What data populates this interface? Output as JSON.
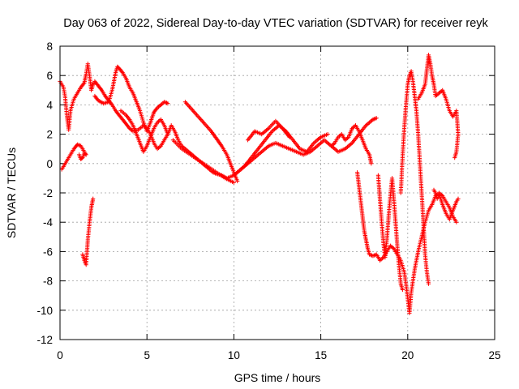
{
  "chart_data": {
    "type": "scatter",
    "title": "Day 063 of 2022, Sidereal Day-to-day VTEC variation (SDTVAR) for receiver reyk",
    "xlabel": "GPS time / hours",
    "ylabel": "SDTVAR / TECUs",
    "xlim": [
      0,
      25
    ],
    "ylim": [
      -12,
      8
    ],
    "xticks": [
      0,
      5,
      10,
      15,
      20,
      25
    ],
    "yticks": [
      -12,
      -10,
      -8,
      -6,
      -4,
      -2,
      0,
      2,
      4,
      6,
      8
    ],
    "grid": true,
    "marker": "+",
    "series": [
      {
        "name": "SDTVAR",
        "color": "#ff0000",
        "tracks": [
          [
            [
              0.0,
              5.6
            ],
            [
              0.2,
              5.2
            ],
            [
              0.3,
              4.5
            ],
            [
              0.4,
              3.2
            ],
            [
              0.5,
              2.3
            ],
            [
              0.6,
              3.6
            ],
            [
              0.8,
              4.4
            ],
            [
              1.0,
              4.8
            ],
            [
              1.2,
              5.2
            ],
            [
              1.4,
              5.5
            ],
            [
              1.5,
              6.1
            ],
            [
              1.6,
              6.8
            ],
            [
              1.7,
              6.0
            ],
            [
              1.8,
              5.0
            ],
            [
              1.9,
              5.4
            ],
            [
              2.0,
              5.6
            ],
            [
              2.2,
              5.3
            ],
            [
              2.4,
              5.0
            ],
            [
              2.6,
              4.6
            ],
            [
              2.8,
              4.3
            ],
            [
              3.0,
              4.0
            ],
            [
              3.2,
              3.6
            ],
            [
              3.4,
              3.3
            ],
            [
              3.6,
              3.0
            ],
            [
              3.8,
              2.7
            ],
            [
              4.0,
              2.4
            ],
            [
              4.2,
              2.2
            ],
            [
              4.5,
              2.3
            ],
            [
              4.8,
              2.6
            ],
            [
              5.0,
              2.4
            ],
            [
              5.2,
              2.0
            ],
            [
              5.4,
              1.4
            ],
            [
              5.6,
              1.0
            ],
            [
              5.8,
              1.2
            ],
            [
              6.0,
              1.6
            ],
            [
              6.2,
              2.0
            ],
            [
              6.4,
              2.6
            ],
            [
              6.6,
              2.2
            ],
            [
              6.8,
              1.6
            ],
            [
              7.0,
              1.2
            ],
            [
              7.2,
              1.0
            ],
            [
              7.4,
              0.8
            ],
            [
              7.6,
              0.6
            ],
            [
              7.8,
              0.4
            ],
            [
              8.0,
              0.2
            ],
            [
              8.2,
              0.0
            ],
            [
              8.4,
              -0.2
            ],
            [
              8.6,
              -0.4
            ],
            [
              8.8,
              -0.6
            ],
            [
              9.0,
              -0.7
            ],
            [
              9.3,
              -0.8
            ],
            [
              9.6,
              -1.0
            ],
            [
              10.0,
              -0.8
            ],
            [
              10.4,
              -0.4
            ],
            [
              10.8,
              0.0
            ],
            [
              11.2,
              0.4
            ],
            [
              11.6,
              0.8
            ],
            [
              12.0,
              1.2
            ],
            [
              12.4,
              1.4
            ],
            [
              12.8,
              1.2
            ],
            [
              13.2,
              1.0
            ],
            [
              13.6,
              0.8
            ],
            [
              14.0,
              0.6
            ],
            [
              14.4,
              0.8
            ],
            [
              14.8,
              1.2
            ],
            [
              15.2,
              1.6
            ],
            [
              15.6,
              1.2
            ],
            [
              16.0,
              0.8
            ],
            [
              16.4,
              1.0
            ],
            [
              16.8,
              1.4
            ],
            [
              17.2,
              2.0
            ],
            [
              17.6,
              2.6
            ],
            [
              18.0,
              3.0
            ],
            [
              18.2,
              3.1
            ]
          ],
          [
            [
              1.1,
              0.6
            ],
            [
              1.2,
              0.3
            ],
            [
              1.3,
              0.4
            ],
            [
              1.4,
              0.7
            ],
            [
              1.5,
              0.6
            ],
            [
              1.2,
              1.2
            ],
            [
              1.0,
              1.3
            ],
            [
              0.8,
              1.0
            ],
            [
              0.6,
              0.6
            ],
            [
              0.4,
              0.2
            ],
            [
              0.2,
              -0.2
            ],
            [
              0.1,
              -0.4
            ]
          ],
          [
            [
              2.0,
              4.6
            ],
            [
              2.2,
              4.3
            ],
            [
              2.5,
              4.1
            ],
            [
              2.8,
              4.2
            ],
            [
              3.0,
              5.0
            ],
            [
              3.2,
              6.2
            ],
            [
              3.3,
              6.6
            ],
            [
              3.4,
              6.5
            ],
            [
              3.6,
              6.2
            ],
            [
              3.8,
              5.8
            ],
            [
              4.0,
              5.2
            ],
            [
              4.2,
              4.8
            ],
            [
              4.4,
              4.2
            ],
            [
              4.6,
              3.6
            ],
            [
              4.8,
              2.8
            ],
            [
              5.0,
              2.2
            ],
            [
              5.2,
              2.8
            ],
            [
              5.4,
              3.5
            ],
            [
              5.6,
              3.8
            ],
            [
              5.8,
              4.0
            ],
            [
              6.0,
              4.2
            ],
            [
              6.2,
              4.1
            ]
          ],
          [
            [
              3.5,
              3.6
            ],
            [
              3.8,
              3.3
            ],
            [
              4.0,
              3.0
            ],
            [
              4.2,
              2.6
            ],
            [
              4.4,
              2.0
            ],
            [
              4.6,
              1.4
            ],
            [
              4.8,
              0.8
            ],
            [
              5.0,
              1.2
            ],
            [
              5.2,
              1.8
            ],
            [
              5.4,
              2.4
            ],
            [
              5.6,
              2.8
            ],
            [
              5.8,
              3.0
            ],
            [
              6.0,
              2.6
            ],
            [
              6.2,
              2.0
            ]
          ],
          [
            [
              7.2,
              4.2
            ],
            [
              7.5,
              3.8
            ],
            [
              7.8,
              3.4
            ],
            [
              8.1,
              3.0
            ],
            [
              8.4,
              2.6
            ],
            [
              8.7,
              2.2
            ],
            [
              9.0,
              1.7
            ],
            [
              9.3,
              1.2
            ],
            [
              9.6,
              0.6
            ],
            [
              9.8,
              0.0
            ],
            [
              10.0,
              -0.6
            ],
            [
              10.2,
              -1.2
            ]
          ],
          [
            [
              6.5,
              1.6
            ],
            [
              7.0,
              1.0
            ],
            [
              7.5,
              0.6
            ],
            [
              8.0,
              0.2
            ],
            [
              8.5,
              -0.2
            ],
            [
              9.0,
              -0.6
            ],
            [
              9.5,
              -1.0
            ],
            [
              10.0,
              -1.3
            ]
          ],
          [
            [
              10.2,
              -0.6
            ],
            [
              10.6,
              -0.2
            ],
            [
              11.0,
              0.4
            ],
            [
              11.4,
              1.0
            ],
            [
              11.8,
              1.6
            ],
            [
              12.2,
              2.2
            ],
            [
              12.6,
              2.6
            ],
            [
              13.0,
              2.2
            ],
            [
              13.4,
              1.6
            ],
            [
              13.8,
              1.0
            ],
            [
              14.2,
              0.8
            ],
            [
              14.6,
              1.4
            ],
            [
              15.0,
              1.8
            ],
            [
              15.4,
              2.0
            ]
          ],
          [
            [
              10.8,
              1.6
            ],
            [
              11.2,
              2.2
            ],
            [
              11.6,
              2.0
            ],
            [
              12.0,
              2.4
            ],
            [
              12.4,
              2.9
            ],
            [
              12.8,
              2.4
            ],
            [
              13.2,
              1.8
            ]
          ],
          [
            [
              15.6,
              1.2
            ],
            [
              15.8,
              1.4
            ],
            [
              16.0,
              1.8
            ],
            [
              16.2,
              2.0
            ],
            [
              16.4,
              1.6
            ],
            [
              16.6,
              1.8
            ],
            [
              16.8,
              2.4
            ],
            [
              17.0,
              2.6
            ],
            [
              17.2,
              2.2
            ],
            [
              17.4,
              1.6
            ],
            [
              17.6,
              1.0
            ],
            [
              17.8,
              0.6
            ],
            [
              17.9,
              0.0
            ]
          ],
          [
            [
              1.3,
              -6.2
            ],
            [
              1.4,
              -6.6
            ],
            [
              1.5,
              -6.9
            ],
            [
              1.6,
              -5.2
            ],
            [
              1.7,
              -4.0
            ],
            [
              1.8,
              -3.0
            ],
            [
              1.9,
              -2.4
            ]
          ],
          [
            [
              17.1,
              -0.6
            ],
            [
              17.2,
              -1.6
            ],
            [
              17.3,
              -2.6
            ],
            [
              17.4,
              -3.6
            ],
            [
              17.5,
              -4.6
            ],
            [
              17.6,
              -5.2
            ],
            [
              17.7,
              -5.8
            ],
            [
              17.8,
              -6.2
            ],
            [
              18.0,
              -6.3
            ],
            [
              18.2,
              -6.2
            ],
            [
              18.4,
              -6.6
            ],
            [
              18.6,
              -6.4
            ],
            [
              18.8,
              -6.0
            ],
            [
              19.0,
              -5.6
            ],
            [
              19.2,
              -5.8
            ],
            [
              19.4,
              -6.2
            ],
            [
              19.6,
              -6.6
            ],
            [
              19.8,
              -7.4
            ],
            [
              19.9,
              -8.2
            ],
            [
              20.0,
              -9.2
            ],
            [
              20.1,
              -10.2
            ],
            [
              20.2,
              -8.8
            ],
            [
              20.4,
              -7.2
            ],
            [
              20.6,
              -6.0
            ],
            [
              20.8,
              -5.0
            ],
            [
              21.0,
              -4.0
            ],
            [
              21.2,
              -3.2
            ],
            [
              21.4,
              -2.8
            ],
            [
              21.6,
              -2.2
            ],
            [
              21.8,
              -2.0
            ],
            [
              22.0,
              -2.2
            ],
            [
              22.2,
              -2.6
            ],
            [
              22.4,
              -3.0
            ],
            [
              22.6,
              -3.6
            ],
            [
              22.8,
              -4.0
            ]
          ],
          [
            [
              18.3,
              -0.8
            ],
            [
              18.4,
              -2.4
            ],
            [
              18.5,
              -4.0
            ],
            [
              18.6,
              -5.4
            ],
            [
              18.7,
              -6.4
            ],
            [
              18.8,
              -5.2
            ],
            [
              18.9,
              -3.6
            ],
            [
              19.0,
              -2.2
            ],
            [
              19.1,
              -1.0
            ],
            [
              19.2,
              -2.4
            ],
            [
              19.3,
              -4.0
            ],
            [
              19.4,
              -5.6
            ],
            [
              19.5,
              -7.0
            ],
            [
              19.6,
              -8.2
            ],
            [
              19.7,
              -8.6
            ]
          ],
          [
            [
              19.6,
              -2.0
            ],
            [
              19.7,
              0.4
            ],
            [
              19.8,
              2.4
            ],
            [
              19.9,
              4.0
            ],
            [
              20.0,
              5.4
            ],
            [
              20.1,
              6.0
            ],
            [
              20.2,
              6.3
            ],
            [
              20.3,
              5.6
            ],
            [
              20.4,
              4.6
            ],
            [
              20.5,
              3.6
            ],
            [
              20.6,
              2.0
            ],
            [
              20.7,
              0.0
            ],
            [
              20.8,
              -2.0
            ],
            [
              20.9,
              -4.0
            ],
            [
              21.0,
              -6.2
            ],
            [
              21.1,
              -7.4
            ],
            [
              21.2,
              -8.2
            ]
          ],
          [
            [
              20.6,
              4.4
            ],
            [
              20.8,
              4.8
            ],
            [
              21.0,
              5.4
            ],
            [
              21.1,
              6.4
            ],
            [
              21.2,
              7.4
            ],
            [
              21.3,
              6.8
            ],
            [
              21.4,
              6.0
            ],
            [
              21.5,
              5.4
            ],
            [
              21.6,
              4.6
            ],
            [
              21.8,
              4.8
            ],
            [
              22.0,
              5.0
            ],
            [
              22.2,
              4.4
            ],
            [
              22.4,
              3.6
            ],
            [
              22.6,
              3.2
            ],
            [
              22.8,
              3.6
            ],
            [
              22.9,
              2.0
            ],
            [
              22.8,
              0.8
            ],
            [
              22.7,
              0.4
            ]
          ],
          [
            [
              21.5,
              -1.8
            ],
            [
              21.6,
              -2.0
            ],
            [
              21.7,
              -2.4
            ],
            [
              21.8,
              -2.2
            ],
            [
              21.9,
              -2.4
            ],
            [
              22.0,
              -2.8
            ],
            [
              22.2,
              -3.4
            ],
            [
              22.4,
              -3.8
            ],
            [
              22.6,
              -3.2
            ],
            [
              22.8,
              -2.6
            ],
            [
              22.9,
              -2.4
            ]
          ]
        ]
      }
    ]
  }
}
